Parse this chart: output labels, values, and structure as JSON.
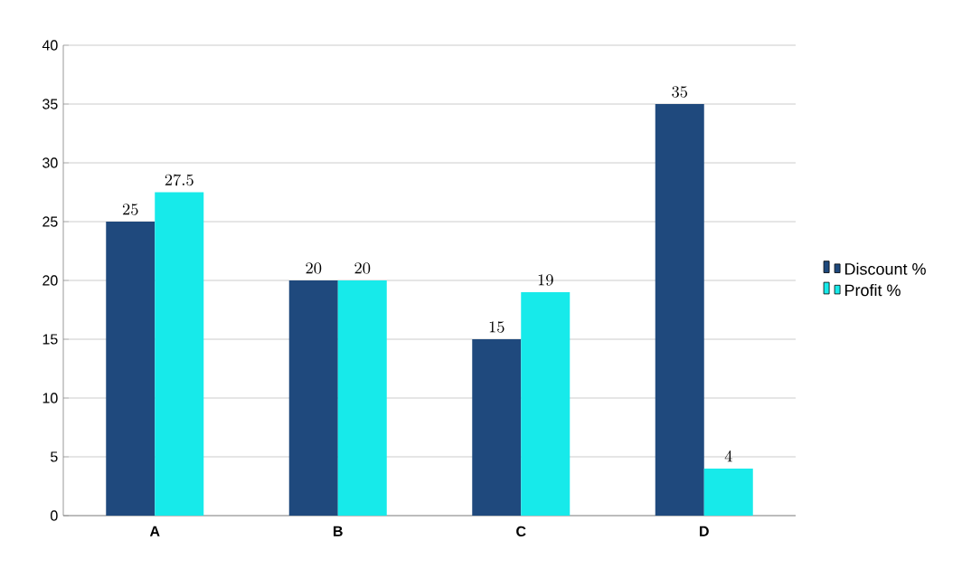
{
  "chart_data": {
    "type": "bar",
    "categories": [
      "A",
      "B",
      "C",
      "D"
    ],
    "series": [
      {
        "name": "Discount %",
        "color": "#1f497d",
        "values": [
          25,
          20,
          15,
          35
        ]
      },
      {
        "name": "Profit %",
        "color": "#17eaea",
        "values": [
          27.5,
          20,
          19,
          4
        ]
      }
    ],
    "ylim": [
      0,
      40
    ],
    "yticks": [
      0,
      5,
      10,
      15,
      20,
      25,
      30,
      35,
      40
    ],
    "grid": "y",
    "legend": "right",
    "data_labels": true
  }
}
